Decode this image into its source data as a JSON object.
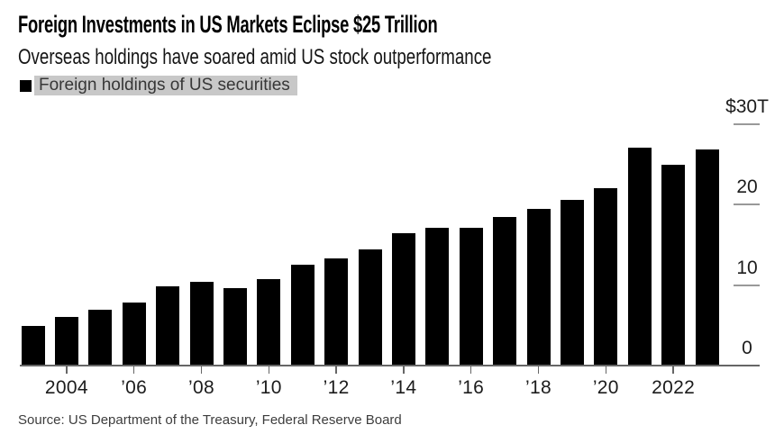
{
  "header": {
    "title": "Foreign Investments in US Markets Eclipse $25 Trillion",
    "subtitle": "Overseas holdings have soared amid US stock outperformance"
  },
  "legend": {
    "swatch_color": "#000000",
    "highlight_color": "#c8c8c8",
    "label": "Foreign holdings of US securities"
  },
  "source": "Source: US Department of the Treasury, Federal Reserve Board",
  "chart_data": {
    "type": "bar",
    "title": "Foreign Investments in US Markets Eclipse $25 Trillion",
    "subtitle": "Overseas holdings have soared amid US stock outperformance",
    "series_name": "Foreign holdings of US securities",
    "unit": "USD trillions",
    "bar_color": "#000000",
    "grid": false,
    "axis_side": "right",
    "legend_position": "top-left",
    "ylim": [
      0,
      30
    ],
    "x": [
      2003,
      2004,
      2005,
      2006,
      2007,
      2008,
      2009,
      2010,
      2011,
      2012,
      2013,
      2014,
      2015,
      2016,
      2017,
      2018,
      2019,
      2020,
      2021,
      2022,
      2023
    ],
    "values": [
      4.9,
      6.0,
      6.9,
      7.8,
      9.8,
      10.4,
      9.6,
      10.7,
      12.5,
      13.3,
      14.4,
      16.4,
      17.1,
      17.1,
      18.4,
      19.4,
      20.6,
      22.0,
      27.0,
      24.9,
      26.8
    ],
    "yticks": [
      {
        "value": 30,
        "label": "$30T"
      },
      {
        "value": 20,
        "label": "20"
      },
      {
        "value": 10,
        "label": "10"
      },
      {
        "value": 0,
        "label": "0"
      }
    ],
    "xticks": [
      {
        "year": 2004,
        "label": "2004"
      },
      {
        "year": 2006,
        "label": "’06"
      },
      {
        "year": 2008,
        "label": "’08"
      },
      {
        "year": 2010,
        "label": "’10"
      },
      {
        "year": 2012,
        "label": "’12"
      },
      {
        "year": 2014,
        "label": "’14"
      },
      {
        "year": 2016,
        "label": "’16"
      },
      {
        "year": 2018,
        "label": "’18"
      },
      {
        "year": 2020,
        "label": "’20"
      },
      {
        "year": 2022,
        "label": "2022"
      }
    ]
  }
}
